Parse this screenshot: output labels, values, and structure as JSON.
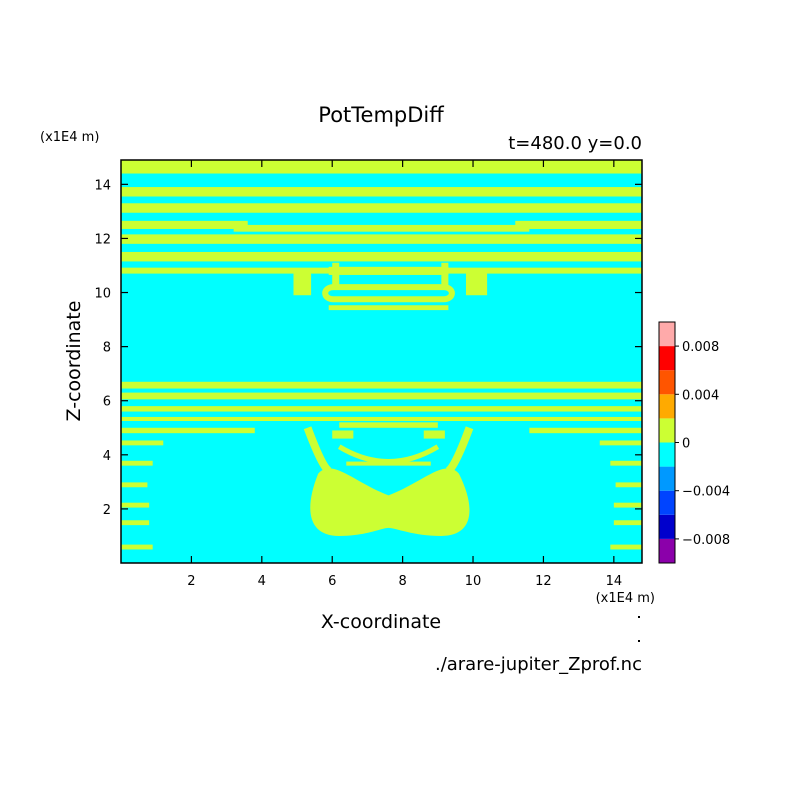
{
  "chart_data": {
    "type": "heatmap",
    "title": "PotTempDiff",
    "subtitle": "t=480.0 y=0.0",
    "xlabel": "X-coordinate",
    "ylabel": "Z-coordinate",
    "x_unit": "(x1E4 m)",
    "y_unit": "(x1E4 m)",
    "xlim": [
      0,
      14.8
    ],
    "ylim": [
      0,
      14.9
    ],
    "x_ticks": [
      2,
      4,
      6,
      8,
      10,
      12,
      14
    ],
    "y_ticks": [
      2,
      4,
      6,
      8,
      10,
      12,
      14
    ],
    "x_tick_labels": [
      "2",
      "4",
      "6",
      "8",
      "10",
      "12",
      "14"
    ],
    "y_tick_labels": [
      "2",
      "4",
      "6",
      "8",
      "10",
      "12",
      "14"
    ],
    "background_level": "-0.002 to 0",
    "foreground_level": "0 to 0.002",
    "background_color": "#00ffff",
    "foreground_color": "#ccff33",
    "colorbar": {
      "levels": [
        -0.01,
        -0.008,
        -0.006,
        -0.004,
        -0.002,
        0,
        0.002,
        0.004,
        0.006,
        0.008,
        0.01
      ],
      "colors": [
        "#8b00aa",
        "#0000cc",
        "#0044ff",
        "#0099ff",
        "#00ffff",
        "#ccff33",
        "#ffaa00",
        "#ff5500",
        "#ff0000",
        "#ffaaaa"
      ],
      "labels": [
        {
          "value": 0.008,
          "text": "0.008"
        },
        {
          "value": 0.004,
          "text": "0.004"
        },
        {
          "value": 0,
          "text": "0"
        },
        {
          "value": -0.004,
          "text": "−0.004"
        },
        {
          "value": -0.008,
          "text": "−0.008"
        }
      ]
    },
    "grid": false
  },
  "footer": {
    "filename": "./arare-jupiter_Zprof.nc"
  }
}
